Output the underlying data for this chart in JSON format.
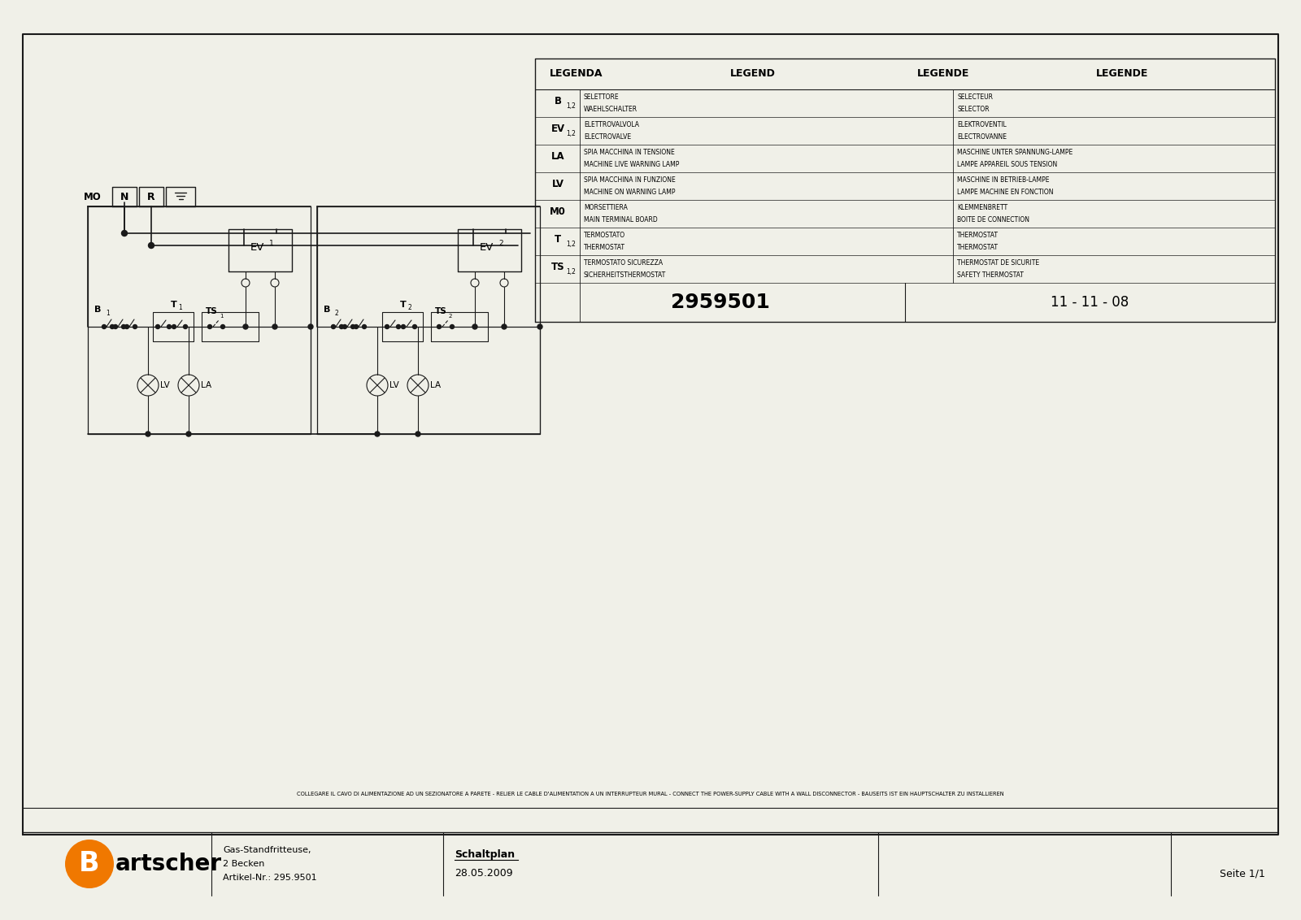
{
  "bg_color": "#f0f0e8",
  "line_color": "#1a1a1a",
  "legend_header": [
    "LEGENDA",
    "LEGEND",
    "LEGENDE",
    "LEGENDE"
  ],
  "legend_rows": [
    {
      "sym": "B",
      "sub": "1,2",
      "col1a": "SELETTORE",
      "col1b": "WAEHLSCHALTER",
      "col2a": "SELECTEUR",
      "col2b": "SELECTOR"
    },
    {
      "sym": "EV",
      "sub": "1,2",
      "col1a": "ELETTROVALVOLA",
      "col1b": "ELECTROVALVE",
      "col2a": "ELEKTROVENTIL",
      "col2b": "ELECTROVANNE"
    },
    {
      "sym": "LA",
      "sub": "",
      "col1a": "SPIA MACCHINA IN TENSIONE",
      "col1b": "MACHINE LIVE WARNING LAMP",
      "col2a": "MASCHINE UNTER SPANNUNG-LAMPE",
      "col2b": "LAMPE APPAREIL SOUS TENSION"
    },
    {
      "sym": "LV",
      "sub": "",
      "col1a": "SPIA MACCHINA IN FUNZIONE",
      "col1b": "MACHINE ON WARNING LAMP",
      "col2a": "MASCHINE IN BETRIEB-LAMPE",
      "col2b": "LAMPE MACHINE EN FONCTION"
    },
    {
      "sym": "M0",
      "sub": "",
      "col1a": "MORSETTIERA",
      "col1b": "MAIN TERMINAL BOARD",
      "col2a": "KLEMMENBRETT",
      "col2b": "BOITE DE CONNECTION"
    },
    {
      "sym": "T",
      "sub": "1,2",
      "col1a": "TERMOSTATO",
      "col1b": "THERMOSTAT",
      "col2a": "THERMOSTAT",
      "col2b": "THERMOSTAT"
    },
    {
      "sym": "TS",
      "sub": "1,2",
      "col1a": "TERMOSTATO SICUREZZA",
      "col1b": "SICHERHEITSTHERMOSTAT",
      "col2a": "THERMOSTAT DE SICURITE",
      "col2b": "SAFETY THERMOSTAT"
    }
  ],
  "model_number": "2959501",
  "doc_date_code": "11 - 11 - 08",
  "footer_warning": "COLLEGARE IL CAVO DI ALIMENTAZIONE AD UN SEZIONATORE A PARETE - RELIER LE CABLE D'ALIMENTATION A UN INTERRUPTEUR MURAL - CONNECT THE POWER-SUPPLY CABLE WITH A WALL DISCONNECTOR - BAUSEITS IST EIN HAUPTSCHALTER ZU INSTALLIEREN",
  "title_company1": "Gas-Standfritteuse,",
  "title_company2": "2 Becken",
  "title_company3": "Artikel-Nr.: 295.9501",
  "title_doc": "Schaltplan",
  "title_docdate": "28.05.2009",
  "title_page": "Seite 1/1",
  "logo_color": "#f07800"
}
